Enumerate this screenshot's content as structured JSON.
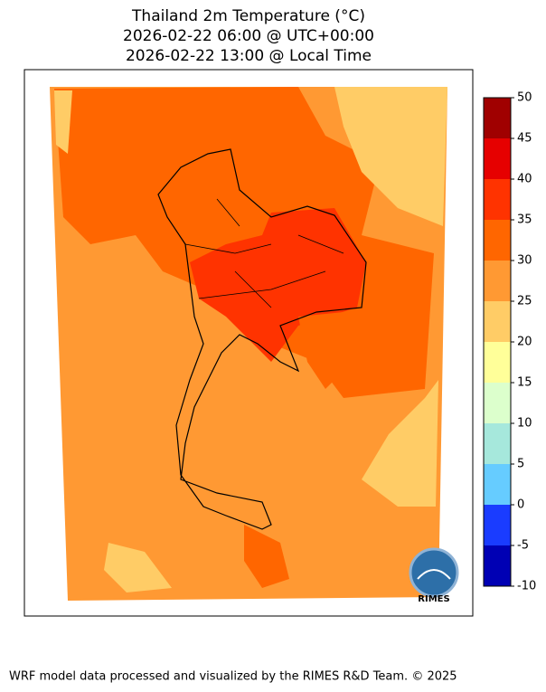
{
  "chart_data": {
    "type": "map",
    "title": [
      "Thailand 2m Temperature (°C)",
      "2026-02-22 06:00 @ UTC+00:00",
      "2026-02-22 13:00 @ Local Time"
    ],
    "colorbar": {
      "levels": [
        -10,
        -5,
        0,
        5,
        10,
        15,
        20,
        25,
        30,
        35,
        40,
        45,
        50
      ],
      "colors": [
        "#0000b4",
        "#1a3cff",
        "#66ccff",
        "#a6e8dc",
        "#dcffcc",
        "#ffff99",
        "#ffcc66",
        "#ff9933",
        "#ff6600",
        "#ff3300",
        "#e60000",
        "#a00000"
      ]
    }
  },
  "logo": "RIMES",
  "footer": "WRF model data processed and visualized by the RIMES R&D Team. © 2025"
}
